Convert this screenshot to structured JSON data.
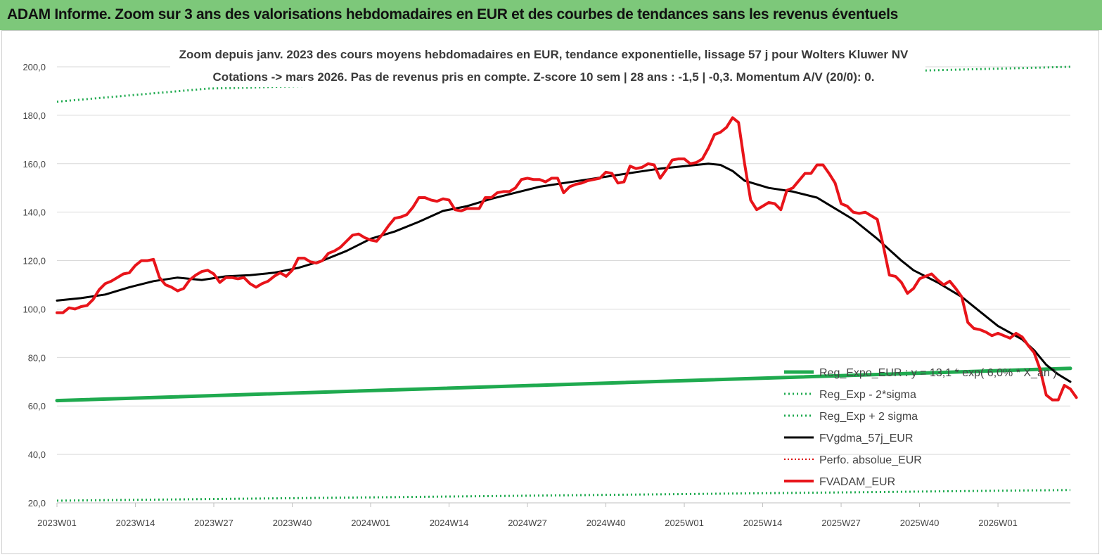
{
  "header": {
    "title": "ADAM Informe. Zoom sur 3 ans des valorisations hebdomadaires en EUR et des courbes de tendances sans les revenus éventuels"
  },
  "chart_data": {
    "type": "line",
    "title_lines": [
      "Zoom depuis janv. 2023 des cours moyens hebdomadaires en EUR, tendance exponentielle, lissage 57 j pour Wolters Kluwer NV",
      "Cotations -> mars 2026. Pas de revenus pris en  compte. Z-score 10 sem  | 28 ans : -1,5 | -0,3. Momentum A/V (20/0): 0."
    ],
    "xlabel": "",
    "ylabel": "",
    "ylim": [
      20,
      200
    ],
    "yticks": [
      "20,0",
      "40,0",
      "60,0",
      "80,0",
      "100,0",
      "120,0",
      "140,0",
      "160,0",
      "180,0",
      "200,0"
    ],
    "xlim": [
      0,
      168
    ],
    "xticks": [
      {
        "pos": 0,
        "label": "2023W01"
      },
      {
        "pos": 13,
        "label": "2023W14"
      },
      {
        "pos": 26,
        "label": "2023W27"
      },
      {
        "pos": 39,
        "label": "2023W40"
      },
      {
        "pos": 52,
        "label": "2024W01"
      },
      {
        "pos": 65,
        "label": "2024W14"
      },
      {
        "pos": 78,
        "label": "2024W27"
      },
      {
        "pos": 91,
        "label": "2024W40"
      },
      {
        "pos": 104,
        "label": "2025W01"
      },
      {
        "pos": 117,
        "label": "2025W14"
      },
      {
        "pos": 130,
        "label": "2025W27"
      },
      {
        "pos": 143,
        "label": "2025W40"
      },
      {
        "pos": 156,
        "label": "2026W01"
      }
    ],
    "grid": "horizontal",
    "series": [
      {
        "name": "Reg_Expo_EUR : y = 13,1 * exp( 6,0% * X_an )",
        "color": "#1faa4f",
        "style": "solid",
        "width": 5,
        "points": [
          [
            0,
            62.2
          ],
          [
            168,
            75.5
          ]
        ]
      },
      {
        "name": "Reg_Exp - 2*sigma",
        "color": "#1faa4f",
        "style": "dotted",
        "width": 3,
        "points": [
          [
            0,
            20.9
          ],
          [
            168,
            25.3
          ]
        ]
      },
      {
        "name": "Reg_Exp + 2 sigma",
        "color": "#1faa4f",
        "style": "dotted",
        "width": 3,
        "points": [
          [
            0,
            185.6
          ],
          [
            25,
            191
          ],
          [
            168,
            200
          ]
        ]
      },
      {
        "name": "FVgdma_57j_EUR",
        "color": "#000000",
        "style": "solid",
        "width": 3,
        "points": [
          [
            0,
            103.5
          ],
          [
            4,
            104.5
          ],
          [
            8,
            106
          ],
          [
            12,
            109
          ],
          [
            16,
            111.5
          ],
          [
            20,
            113
          ],
          [
            24,
            112
          ],
          [
            28,
            113.5
          ],
          [
            32,
            114
          ],
          [
            36,
            115
          ],
          [
            40,
            117
          ],
          [
            44,
            120
          ],
          [
            48,
            124
          ],
          [
            52,
            129
          ],
          [
            56,
            132
          ],
          [
            60,
            136
          ],
          [
            64,
            140.5
          ],
          [
            68,
            142.5
          ],
          [
            72,
            145.5
          ],
          [
            76,
            148
          ],
          [
            80,
            150.5
          ],
          [
            84,
            152
          ],
          [
            88,
            153.5
          ],
          [
            92,
            155
          ],
          [
            96,
            156.5
          ],
          [
            100,
            158
          ],
          [
            104,
            159
          ],
          [
            108,
            160
          ],
          [
            110,
            159.5
          ],
          [
            112,
            157
          ],
          [
            114,
            153
          ],
          [
            118,
            150
          ],
          [
            122,
            148.5
          ],
          [
            126,
            146
          ],
          [
            128,
            143
          ],
          [
            132,
            137
          ],
          [
            136,
            129
          ],
          [
            140,
            120
          ],
          [
            142,
            116
          ],
          [
            146,
            111
          ],
          [
            150,
            105
          ],
          [
            154,
            97
          ],
          [
            156,
            93
          ],
          [
            160,
            87.5
          ],
          [
            162,
            83
          ],
          [
            164,
            77
          ],
          [
            166,
            73
          ],
          [
            168,
            70
          ]
        ]
      },
      {
        "name": "Perfo. absolue_EUR",
        "color": "#dd0000",
        "style": "dotted",
        "width": 2,
        "points": []
      },
      {
        "name": "FVADAM_EUR",
        "color": "#e8141a",
        "style": "solid",
        "width": 4,
        "points": [
          [
            0,
            98.5
          ],
          [
            1,
            98.5
          ],
          [
            2,
            100.5
          ],
          [
            3,
            100
          ],
          [
            4,
            101
          ],
          [
            5,
            101.5
          ],
          [
            6,
            104
          ],
          [
            7,
            108
          ],
          [
            8,
            110.5
          ],
          [
            9,
            111.5
          ],
          [
            10,
            113
          ],
          [
            11,
            114.5
          ],
          [
            12,
            115
          ],
          [
            13,
            118
          ],
          [
            14,
            120
          ],
          [
            15,
            120
          ],
          [
            16,
            120.5
          ],
          [
            17,
            113
          ],
          [
            18,
            110
          ],
          [
            19,
            109
          ],
          [
            20,
            107.5
          ],
          [
            21,
            108.5
          ],
          [
            22,
            112
          ],
          [
            23,
            114
          ],
          [
            24,
            115.5
          ],
          [
            25,
            116
          ],
          [
            26,
            114.5
          ],
          [
            27,
            111
          ],
          [
            28,
            113
          ],
          [
            29,
            113
          ],
          [
            30,
            112.5
          ],
          [
            31,
            113
          ],
          [
            32,
            110.5
          ],
          [
            33,
            109
          ],
          [
            34,
            110.5
          ],
          [
            35,
            111.5
          ],
          [
            36,
            113.5
          ],
          [
            37,
            115
          ],
          [
            38,
            113.5
          ],
          [
            39,
            116
          ],
          [
            40,
            121
          ],
          [
            41,
            121
          ],
          [
            42,
            119.5
          ],
          [
            43,
            119
          ],
          [
            44,
            120
          ],
          [
            45,
            123
          ],
          [
            46,
            124
          ],
          [
            47,
            125.5
          ],
          [
            48,
            128
          ],
          [
            49,
            130.5
          ],
          [
            50,
            131
          ],
          [
            51,
            129.5
          ],
          [
            52,
            128.5
          ],
          [
            53,
            128
          ],
          [
            54,
            131
          ],
          [
            55,
            134.5
          ],
          [
            56,
            137.5
          ],
          [
            57,
            138
          ],
          [
            58,
            139
          ],
          [
            59,
            142
          ],
          [
            60,
            146
          ],
          [
            61,
            146
          ],
          [
            62,
            145
          ],
          [
            63,
            144.5
          ],
          [
            64,
            145.5
          ],
          [
            65,
            145
          ],
          [
            66,
            141
          ],
          [
            67,
            140.5
          ],
          [
            68,
            141.5
          ],
          [
            69,
            141.5
          ],
          [
            70,
            141.5
          ],
          [
            71,
            146
          ],
          [
            72,
            146
          ],
          [
            73,
            148
          ],
          [
            74,
            148.5
          ],
          [
            75,
            148.5
          ],
          [
            76,
            150
          ],
          [
            77,
            153.5
          ],
          [
            78,
            154
          ],
          [
            79,
            153.5
          ],
          [
            80,
            153.5
          ],
          [
            81,
            152.5
          ],
          [
            82,
            154
          ],
          [
            83,
            154
          ],
          [
            84,
            148
          ],
          [
            85,
            150.5
          ],
          [
            86,
            151.5
          ],
          [
            87,
            152
          ],
          [
            88,
            153
          ],
          [
            89,
            153.5
          ],
          [
            90,
            154
          ],
          [
            91,
            156.5
          ],
          [
            92,
            156
          ],
          [
            93,
            152
          ],
          [
            94,
            152.5
          ],
          [
            95,
            159
          ],
          [
            96,
            158
          ],
          [
            97,
            158.5
          ],
          [
            98,
            160
          ],
          [
            99,
            159.5
          ],
          [
            100,
            154
          ],
          [
            101,
            157.5
          ],
          [
            102,
            161.5
          ],
          [
            103,
            162
          ],
          [
            104,
            162
          ],
          [
            105,
            160
          ],
          [
            106,
            160.5
          ],
          [
            107,
            162
          ],
          [
            108,
            166.5
          ],
          [
            109,
            172
          ],
          [
            110,
            173
          ],
          [
            111,
            175
          ],
          [
            112,
            179
          ],
          [
            113,
            177
          ],
          [
            114,
            160
          ],
          [
            115,
            145
          ],
          [
            116,
            141
          ],
          [
            117,
            142.5
          ],
          [
            118,
            144
          ],
          [
            119,
            143.5
          ],
          [
            120,
            141
          ],
          [
            121,
            149
          ],
          [
            122,
            150
          ],
          [
            123,
            153
          ],
          [
            124,
            156
          ],
          [
            125,
            156
          ],
          [
            126,
            159.5
          ],
          [
            127,
            159.5
          ],
          [
            128,
            156
          ],
          [
            129,
            152
          ],
          [
            130,
            143.5
          ],
          [
            131,
            142.5
          ],
          [
            132,
            140
          ],
          [
            133,
            139.5
          ],
          [
            134,
            140
          ],
          [
            135,
            138.5
          ],
          [
            136,
            137
          ],
          [
            137,
            126
          ],
          [
            138,
            114
          ],
          [
            139,
            113.5
          ],
          [
            140,
            111
          ],
          [
            141,
            106.5
          ],
          [
            142,
            108.5
          ],
          [
            143,
            112.5
          ],
          [
            144,
            113.5
          ],
          [
            145,
            114.5
          ],
          [
            146,
            112
          ],
          [
            147,
            110
          ],
          [
            148,
            111.5
          ],
          [
            149,
            108.5
          ],
          [
            150,
            105
          ],
          [
            151,
            94.5
          ],
          [
            152,
            92
          ],
          [
            153,
            91.5
          ],
          [
            154,
            90.5
          ],
          [
            155,
            89
          ],
          [
            156,
            90
          ],
          [
            157,
            89
          ],
          [
            158,
            88
          ],
          [
            159,
            90
          ],
          [
            160,
            88.5
          ],
          [
            161,
            85
          ],
          [
            162,
            82
          ],
          [
            163,
            75
          ],
          [
            164,
            64.5
          ],
          [
            165,
            62.5
          ],
          [
            166,
            62.5
          ],
          [
            167,
            68.5
          ],
          [
            168,
            67
          ],
          [
            169,
            63.5
          ]
        ]
      }
    ]
  }
}
